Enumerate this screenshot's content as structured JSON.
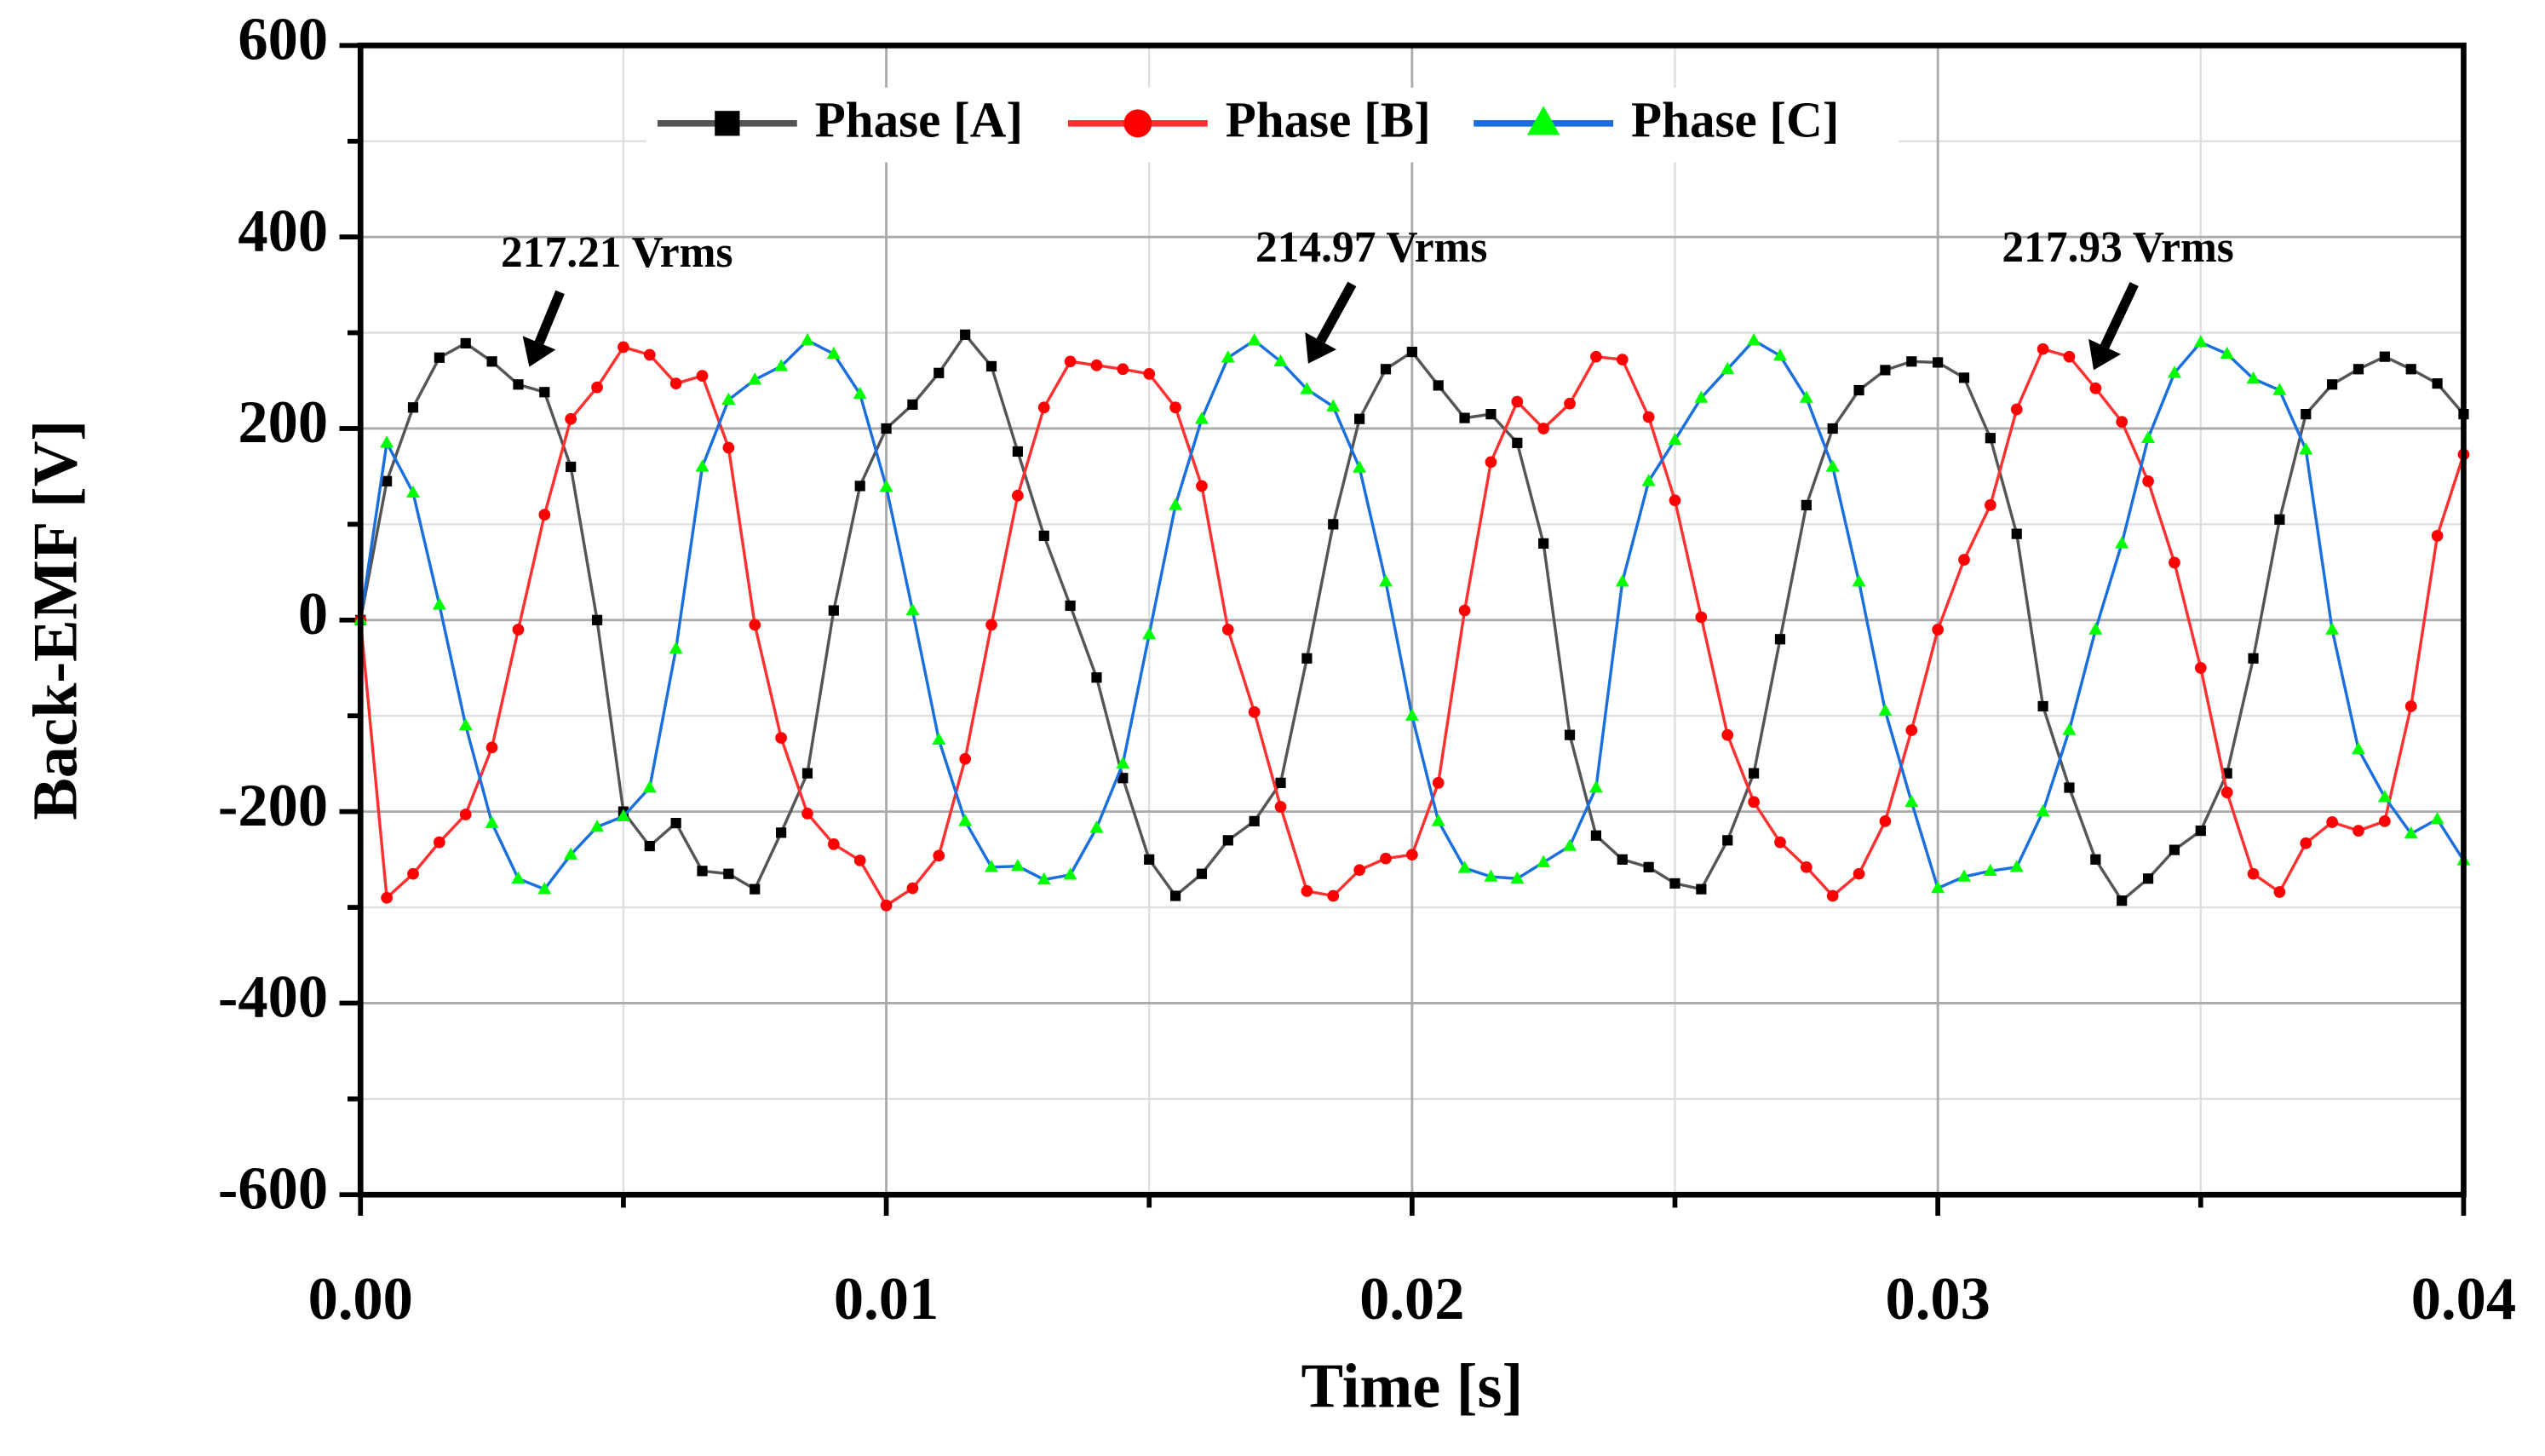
{
  "chart_data": {
    "type": "line",
    "xlabel": "Time [s]",
    "ylabel": "Back-EMF [V]",
    "x": [
      0,
      0.0005,
      0.001,
      0.0015,
      0.002,
      0.0025,
      0.003,
      0.0035,
      0.004,
      0.0045,
      0.005,
      0.0055,
      0.006,
      0.0065,
      0.007,
      0.0075,
      0.008,
      0.0085,
      0.009,
      0.0095,
      0.01,
      0.0105,
      0.011,
      0.0115,
      0.012,
      0.0125,
      0.013,
      0.0135,
      0.014,
      0.0145,
      0.015,
      0.0155,
      0.016,
      0.0165,
      0.017,
      0.0175,
      0.018,
      0.0185,
      0.019,
      0.0195,
      0.02,
      0.0205,
      0.021,
      0.0215,
      0.022,
      0.0225,
      0.023,
      0.0235,
      0.024,
      0.0245,
      0.025,
      0.0255,
      0.026,
      0.0265,
      0.027,
      0.0275,
      0.028,
      0.0285,
      0.029,
      0.0295,
      0.03,
      0.0305,
      0.031,
      0.0315,
      0.032,
      0.0325,
      0.033,
      0.0335,
      0.034,
      0.0345,
      0.035,
      0.0355,
      0.036,
      0.0365,
      0.037,
      0.0375,
      0.038,
      0.0385,
      0.039,
      0.0395,
      0.04
    ],
    "series": [
      {
        "name": "Phase [A]",
        "color": "#555555",
        "marker": "square",
        "marker_color": "#000000",
        "values": [
          0,
          145,
          222,
          274,
          289,
          270,
          246,
          238,
          160,
          0,
          -200,
          -236,
          -212,
          -262,
          -265,
          -281,
          -222,
          -160,
          10,
          140,
          200,
          225,
          258,
          298,
          265,
          176,
          88,
          15,
          -60,
          -165,
          -250,
          -288,
          -265,
          -230,
          -210,
          -170,
          -40,
          100,
          210,
          262,
          280,
          245,
          211,
          215,
          185,
          80,
          -120,
          -225,
          -250,
          -258,
          -275,
          -281,
          -230,
          -160,
          -20,
          120,
          200,
          240,
          261,
          270,
          269,
          253,
          190,
          90,
          -90,
          -175,
          -250,
          -293,
          -270,
          -240,
          -220,
          -160,
          -40,
          105,
          215,
          246,
          262,
          275,
          262,
          247,
          215
        ]
      },
      {
        "name": "Phase [B]",
        "color": "#ff3030",
        "marker": "circle",
        "marker_color": "#ff0000",
        "values": [
          0,
          -290,
          -265,
          -232,
          -203,
          -133,
          -10,
          110,
          210,
          243,
          285,
          277,
          247,
          255,
          180,
          -5,
          -123,
          -202,
          -234,
          -251,
          -298,
          -280,
          -246,
          -145,
          -5,
          130,
          222,
          270,
          266,
          262,
          257,
          222,
          140,
          -10,
          -96,
          -195,
          -283,
          -288,
          -261,
          -249,
          -245,
          -170,
          10,
          165,
          228,
          200,
          226,
          275,
          272,
          212,
          125,
          3,
          -120,
          -190,
          -232,
          -258,
          -288,
          -265,
          -210,
          -115,
          -10,
          63,
          120,
          220,
          283,
          275,
          242,
          207,
          145,
          60,
          -50,
          -180,
          -265,
          -284,
          -233,
          -211,
          -220,
          -210,
          -90,
          88,
          173
        ]
      },
      {
        "name": "Phase [C]",
        "color": "#1a6fdf",
        "marker": "triangle",
        "marker_color": "#00ff00",
        "values": [
          0,
          185,
          133,
          16,
          -110,
          -212,
          -270,
          -281,
          -245,
          -216,
          -205,
          -175,
          -30,
          160,
          230,
          251,
          265,
          292,
          278,
          236,
          139,
          10,
          -125,
          -210,
          -258,
          -257,
          -271,
          -266,
          -217,
          -150,
          -15,
          120,
          210,
          274,
          292,
          270,
          241,
          223,
          159,
          40,
          -100,
          -210,
          -259,
          -268,
          -270,
          -253,
          -236,
          -175,
          40,
          145,
          188,
          232,
          262,
          292,
          276,
          232,
          160,
          40,
          -95,
          -190,
          -280,
          -268,
          -262,
          -258,
          -200,
          -115,
          -10,
          80,
          190,
          258,
          290,
          278,
          252,
          240,
          178,
          -10,
          -135,
          -185,
          -223,
          -208,
          -251
        ]
      }
    ],
    "xlim": [
      0,
      0.04
    ],
    "xticks": [
      {
        "value": 0,
        "label": "0.00"
      },
      {
        "value": 0.01,
        "label": "0.01"
      },
      {
        "value": 0.02,
        "label": "0.02"
      },
      {
        "value": 0.03,
        "label": "0.03"
      },
      {
        "value": 0.04,
        "label": "0.04"
      }
    ],
    "ylim": [
      -600,
      600
    ],
    "yticks": [
      -600,
      -400,
      -200,
      0,
      200,
      400,
      600
    ],
    "grid": true,
    "legend": "top",
    "annotations": [
      {
        "text": "217.21 Vrms"
      },
      {
        "text": "214.97 Vrms"
      },
      {
        "text": "217.93 Vrms"
      }
    ]
  }
}
